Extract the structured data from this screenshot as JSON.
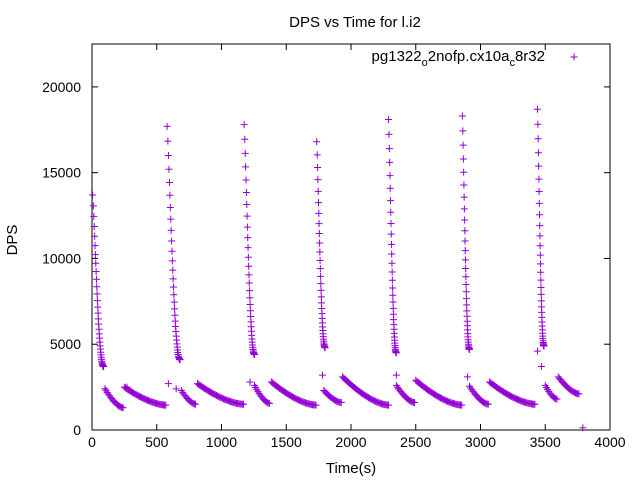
{
  "chart_data": {
    "type": "scatter",
    "title": "DPS vs Time for l.i2",
    "xlabel": "Time(s)",
    "ylabel": "DPS",
    "xlim": [
      0,
      4000
    ],
    "ylim": [
      0,
      22500
    ],
    "xticks": [
      0,
      500,
      1000,
      1500,
      2000,
      2500,
      3000,
      3500,
      4000
    ],
    "yticks": [
      0,
      5000,
      10000,
      15000,
      20000
    ],
    "grid": false,
    "legend_position": "top-right",
    "marker": "plus",
    "color": "#9400d3",
    "series": [
      {
        "name": "pg1322_o2nofp.cx10a_c8r32",
        "name_parts": {
          "a": "pg1322",
          "b": "o",
          "c": "2nofp.cx10a",
          "d": "c",
          "e": "8r32"
        },
        "decays": [
          {
            "t0": 5,
            "t1": 90,
            "y0": 13700,
            "y1": 3700
          },
          {
            "t0": 580,
            "t1": 680,
            "y0": 17700,
            "y1": 4100
          },
          {
            "t0": 1175,
            "t1": 1255,
            "y0": 17800,
            "y1": 4400
          },
          {
            "t0": 1735,
            "t1": 1800,
            "y0": 16800,
            "y1": 4800
          },
          {
            "t0": 2290,
            "t1": 2350,
            "y0": 18100,
            "y1": 4500
          },
          {
            "t0": 2860,
            "t1": 2915,
            "y0": 18300,
            "y1": 4700
          },
          {
            "t0": 3440,
            "t1": 3490,
            "y0": 18700,
            "y1": 4900
          }
        ],
        "plateaus": [
          {
            "t0": 100,
            "t1": 240,
            "y0": 2400,
            "y1": 1300
          },
          {
            "t0": 250,
            "t1": 570,
            "y0": 2500,
            "y1": 1450
          },
          {
            "t0": 690,
            "t1": 800,
            "y0": 2300,
            "y1": 1500
          },
          {
            "t0": 815,
            "t1": 1170,
            "y0": 2700,
            "y1": 1500
          },
          {
            "t0": 1255,
            "t1": 1370,
            "y0": 2600,
            "y1": 1550
          },
          {
            "t0": 1385,
            "t1": 1730,
            "y0": 2800,
            "y1": 1450
          },
          {
            "t0": 1790,
            "t1": 1925,
            "y0": 2300,
            "y1": 1600
          },
          {
            "t0": 1935,
            "t1": 2290,
            "y0": 3100,
            "y1": 1450
          },
          {
            "t0": 2350,
            "t1": 2490,
            "y0": 2600,
            "y1": 1600
          },
          {
            "t0": 2500,
            "t1": 2855,
            "y0": 2900,
            "y1": 1450
          },
          {
            "t0": 2915,
            "t1": 3060,
            "y0": 2550,
            "y1": 1500
          },
          {
            "t0": 3070,
            "t1": 3420,
            "y0": 2800,
            "y1": 1500
          },
          {
            "t0": 3500,
            "t1": 3590,
            "y0": 2600,
            "y1": 1800
          },
          {
            "t0": 3600,
            "t1": 3760,
            "y0": 3100,
            "y1": 2100
          }
        ],
        "extra_points": [
          [
            100,
            2400
          ],
          [
            270,
            2500
          ],
          [
            590,
            2700
          ],
          [
            650,
            2400
          ],
          [
            1220,
            2800
          ],
          [
            1780,
            3200
          ],
          [
            2350,
            3200
          ],
          [
            2900,
            3100
          ],
          [
            3440,
            4600
          ],
          [
            3470,
            3700
          ],
          [
            3790,
            130
          ]
        ]
      }
    ]
  }
}
